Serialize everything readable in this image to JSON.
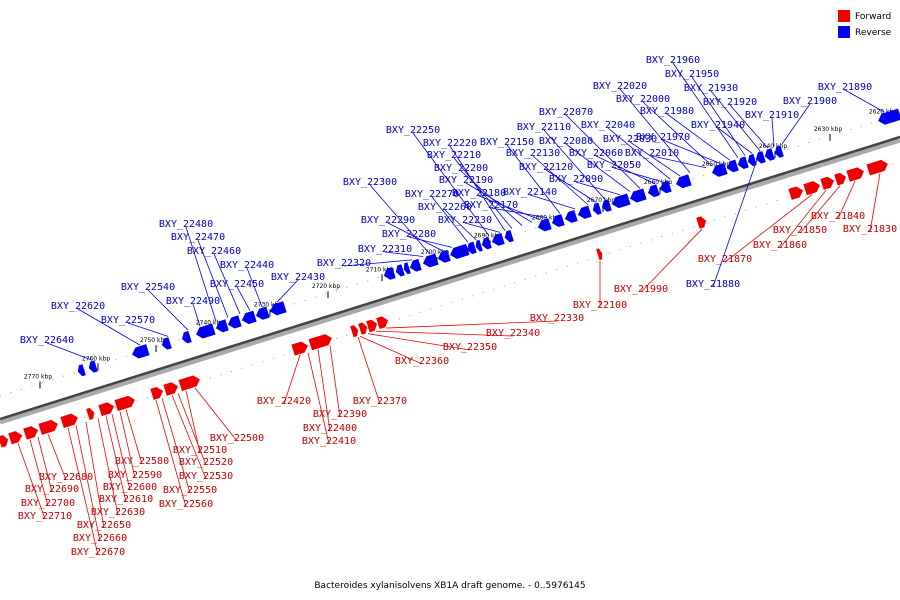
{
  "legend": {
    "forward_label": "Forward",
    "reverse_label": "Reverse",
    "forward_color": "#ee0000",
    "reverse_color": "#0000ee"
  },
  "caption": "Bacteroides xylanisolvens XB1A draft genome. - 0..5976145",
  "ticks": [
    "2620 kbp",
    "2630 kbp",
    "2640 kbp",
    "2650 kbp",
    "2660 kbp",
    "2670 kbp",
    "2680 kbp",
    "2690 kbp",
    "2700 kbp",
    "2710 kbp",
    "2720 kbp",
    "2730 kbp",
    "2740 kbp",
    "2750 kbp",
    "2760 kbp",
    "2770 kbp"
  ],
  "reverse_genes": [
    "BXY_21890",
    "BXY_21900",
    "BXY_21910",
    "BXY_21920",
    "BXY_21930",
    "BXY_21940",
    "BXY_21950",
    "BXY_21960",
    "BXY_21970",
    "BXY_21980",
    "BXY_22000",
    "BXY_22010",
    "BXY_22020",
    "BXY_22030",
    "BXY_22040",
    "BXY_22050",
    "BXY_22060",
    "BXY_22070",
    "BXY_22080",
    "BXY_22090",
    "BXY_22110",
    "BXY_22120",
    "BXY_22130",
    "BXY_22140",
    "BXY_22150",
    "BXY_22170",
    "BXY_22180",
    "BXY_22190",
    "BXY_22200",
    "BXY_22210",
    "BXY_22220",
    "BXY_22230",
    "BXY_22250",
    "BXY_22260",
    "BXY_22270",
    "BXY_22280",
    "BXY_22290",
    "BXY_22300",
    "BXY_22310",
    "BXY_22320",
    "BXY_22430",
    "BXY_22440",
    "BXY_22450",
    "BXY_22460",
    "BXY_22470",
    "BXY_22480",
    "BXY_22490",
    "BXY_22540",
    "BXY_22570",
    "BXY_22620",
    "BXY_22640",
    "BXY_21880"
  ],
  "forward_genes": [
    "BXY_21830",
    "BXY_21840",
    "BXY_21850",
    "BXY_21860",
    "BXY_21870",
    "BXY_21990",
    "BXY_22100",
    "BXY_22330",
    "BXY_22340",
    "BXY_22350",
    "BXY_22360",
    "BXY_22370",
    "BXY_22390",
    "BXY_22400",
    "BXY_22410",
    "BXY_22420",
    "BXY_22500",
    "BXY_22510",
    "BXY_22520",
    "BXY_22530",
    "BXY_22550",
    "BXY_22560",
    "BXY_22580",
    "BXY_22590",
    "BXY_22600",
    "BXY_22610",
    "BXY_22630",
    "BXY_22650",
    "BXY_22660",
    "BXY_22670",
    "BXY_22680",
    "BXY_22690",
    "BXY_22700",
    "BXY_22710"
  ]
}
